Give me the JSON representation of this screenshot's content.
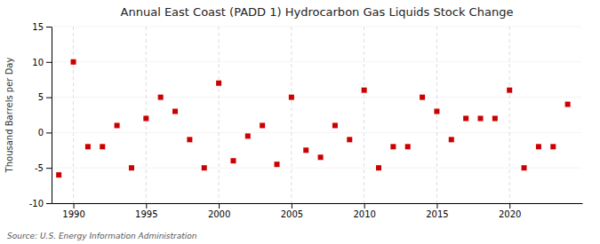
{
  "chart_data": {
    "type": "scatter",
    "title": "Annual East Coast (PADD 1) Hydrocarbon Gas Liquids Stock Change",
    "ylabel": "Thousand Barrels per Day",
    "source": "Source: U.S. Energy Information Administration",
    "x": [
      1989,
      1990,
      1991,
      1992,
      1993,
      1994,
      1995,
      1996,
      1997,
      1998,
      1999,
      2000,
      2001,
      2002,
      2003,
      2004,
      2005,
      2006,
      2007,
      2008,
      2009,
      2010,
      2011,
      2012,
      2013,
      2014,
      2015,
      2016,
      2017,
      2018,
      2019,
      2020,
      2021,
      2022,
      2023,
      2024
    ],
    "values": [
      -6,
      10,
      -2,
      -2,
      1,
      -5,
      2,
      5,
      3,
      -1,
      -5,
      7,
      -4,
      -0.5,
      1,
      -4.5,
      5,
      -2.5,
      -3.5,
      1,
      -1,
      6,
      -5,
      -2,
      -2,
      5,
      3,
      -1,
      2,
      2,
      2,
      6,
      -5,
      -2,
      -2,
      4
    ],
    "color": "#cc0000",
    "marker": "square",
    "xlim": [
      1988.5,
      2025
    ],
    "ylim": [
      -10,
      15
    ],
    "xticks": [
      1990,
      1995,
      2000,
      2005,
      2010,
      2015,
      2020
    ],
    "yticks": [
      -10,
      -5,
      0,
      5,
      10,
      15
    ],
    "grid": true
  }
}
